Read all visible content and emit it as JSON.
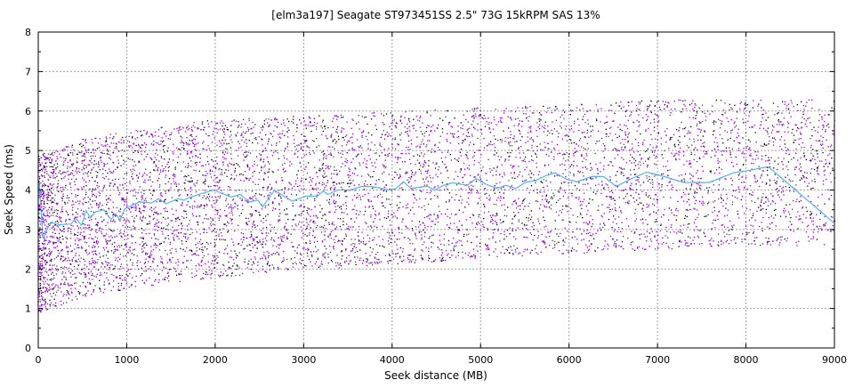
{
  "chart_data": {
    "type": "scatter",
    "title": "[elm3a197] Seagate ST973451SS 2.5\" 73G 15kRPM SAS 13%",
    "xlabel": "Seek distance (MB)",
    "ylabel": "Seek Speed (ms)",
    "xlim": [
      0,
      9000
    ],
    "ylim": [
      0,
      8
    ],
    "xticks": [
      "0",
      "1000",
      "2000",
      "3000",
      "4000",
      "5000",
      "6000",
      "7000",
      "8000",
      "9000"
    ],
    "yticks": [
      "0",
      "1",
      "2",
      "3",
      "4",
      "5",
      "6",
      "7",
      "8"
    ],
    "grid": true,
    "colors": {
      "scatter_primary": "#9400d3",
      "scatter_secondary": "#000000",
      "average_line": "#56b4e9",
      "grid": "#a0a0a0"
    },
    "scatter_model": {
      "point_count": 7000,
      "secondary_fraction": 0.22,
      "envelope_x": [
        0,
        500,
        1000,
        2000,
        3000,
        4000,
        5000,
        6000,
        7000,
        8000,
        9000
      ],
      "envelope_lower": [
        0.9,
        1.3,
        1.5,
        1.8,
        2.0,
        2.1,
        2.3,
        2.4,
        2.5,
        2.6,
        2.6
      ],
      "envelope_upper": [
        4.9,
        5.3,
        5.5,
        5.8,
        5.9,
        6.0,
        6.1,
        6.2,
        6.3,
        6.3,
        6.3
      ]
    },
    "series": [
      {
        "name": "average",
        "x": [
          10,
          53,
          137,
          238,
          372,
          423,
          490,
          540,
          590,
          641,
          741,
          825,
          875,
          925,
          976,
          1144,
          1278,
          1361,
          1445,
          1580,
          1647,
          1697,
          1814,
          1982,
          2183,
          2284,
          2384,
          2485,
          2535,
          2669,
          2870,
          3021,
          3156,
          3222,
          3272,
          3390,
          3525,
          3659,
          3793,
          3961,
          4045,
          4128,
          4212,
          4397,
          4480,
          4581,
          4682,
          4765,
          4849,
          4950,
          5067,
          5184,
          5285,
          5402,
          5503,
          5620,
          5737,
          5838,
          5972,
          6090,
          6257,
          6391,
          6532,
          6710,
          6878,
          7045,
          7296,
          7581,
          7866,
          8017,
          8251,
          8989
        ],
        "y": [
          4.19,
          2.77,
          3.18,
          3.12,
          3.14,
          3.29,
          3.1,
          3.48,
          3.29,
          3.44,
          3.5,
          3.25,
          3.4,
          3.24,
          3.52,
          3.7,
          3.67,
          3.78,
          3.65,
          3.78,
          3.74,
          3.8,
          3.89,
          4.0,
          3.82,
          3.89,
          3.7,
          3.74,
          3.57,
          3.99,
          3.72,
          3.84,
          3.85,
          3.97,
          3.89,
          4.0,
          4.0,
          4.09,
          4.08,
          4.0,
          4.04,
          4.21,
          4.04,
          4.1,
          3.99,
          4.12,
          4.18,
          4.15,
          4.12,
          4.29,
          4.14,
          4.04,
          4.12,
          4.04,
          4.19,
          4.24,
          4.36,
          4.44,
          4.27,
          4.21,
          4.34,
          4.34,
          4.09,
          4.29,
          4.45,
          4.36,
          4.19,
          4.19,
          4.44,
          4.49,
          4.59,
          3.18
        ]
      }
    ]
  }
}
